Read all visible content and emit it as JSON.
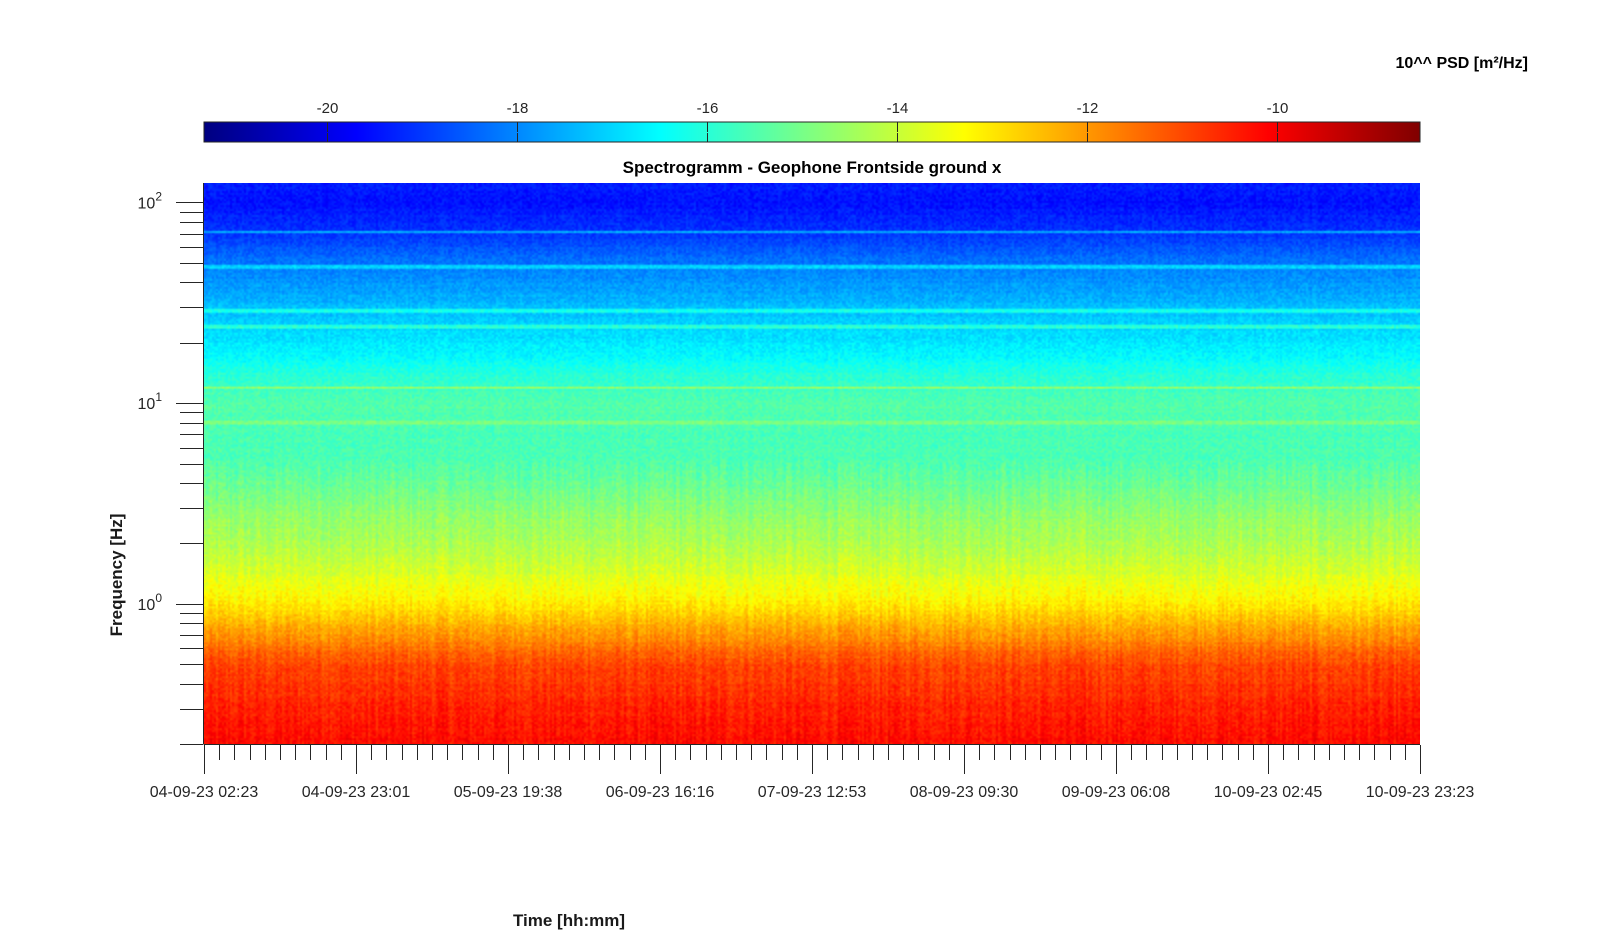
{
  "chart_data": {
    "type": "heatmap",
    "title": "Spectrogramm - Geophone Frontside ground x",
    "xlabel": "Time [hh:mm]",
    "ylabel": "Frequency [Hz]",
    "x_ticks": [
      "04-09-23 02:23",
      "04-09-23 23:01",
      "05-09-23 19:38",
      "06-09-23 16:16",
      "07-09-23 12:53",
      "08-09-23 09:30",
      "09-09-23 06:08",
      "10-09-23 02:45",
      "10-09-23 23:23"
    ],
    "y_scale": "log",
    "ylim": [
      0.2,
      125
    ],
    "y_ticks": [
      {
        "value": 1,
        "base": "10",
        "exp": "0"
      },
      {
        "value": 10,
        "base": "10",
        "exp": "1"
      },
      {
        "value": 100,
        "base": "10",
        "exp": "2"
      }
    ],
    "colorbar": {
      "title": "10^^ PSD [m²/Hz]",
      "range": [
        -21.3,
        -8.5
      ],
      "ticks": [
        -20,
        -18,
        -16,
        -14,
        -12,
        -10
      ],
      "tick_labels": [
        "-20",
        "-18",
        "-16",
        "-14",
        "-12",
        "-10"
      ],
      "colormap": "jet",
      "placement": "top"
    },
    "spectral_profile": {
      "freqs_hz": [
        0.2,
        0.3,
        0.5,
        0.7,
        1.0,
        1.5,
        2.0,
        3.0,
        5.0,
        7.0,
        10.0,
        15.0,
        20.0,
        30.0,
        50.0,
        70.0,
        100.0,
        125.0
      ],
      "log10_psd": [
        -10.2,
        -10.5,
        -11.0,
        -12.0,
        -13.1,
        -13.9,
        -14.3,
        -14.8,
        -15.5,
        -15.6,
        -15.4,
        -16.2,
        -16.8,
        -17.3,
        -18.2,
        -19.0,
        -19.5,
        -19.3
      ]
    },
    "lines_hz": [
      {
        "freq": 12.0,
        "log10_psd": -14.6
      },
      {
        "freq": 24.0,
        "log10_psd": -16.0
      },
      {
        "freq": 29.0,
        "log10_psd": -16.3
      },
      {
        "freq": 8.0,
        "log10_psd": -15.0
      },
      {
        "freq": 48.0,
        "log10_psd": -17.0
      },
      {
        "freq": 72.0,
        "log10_psd": -17.5
      }
    ],
    "grid": false
  }
}
